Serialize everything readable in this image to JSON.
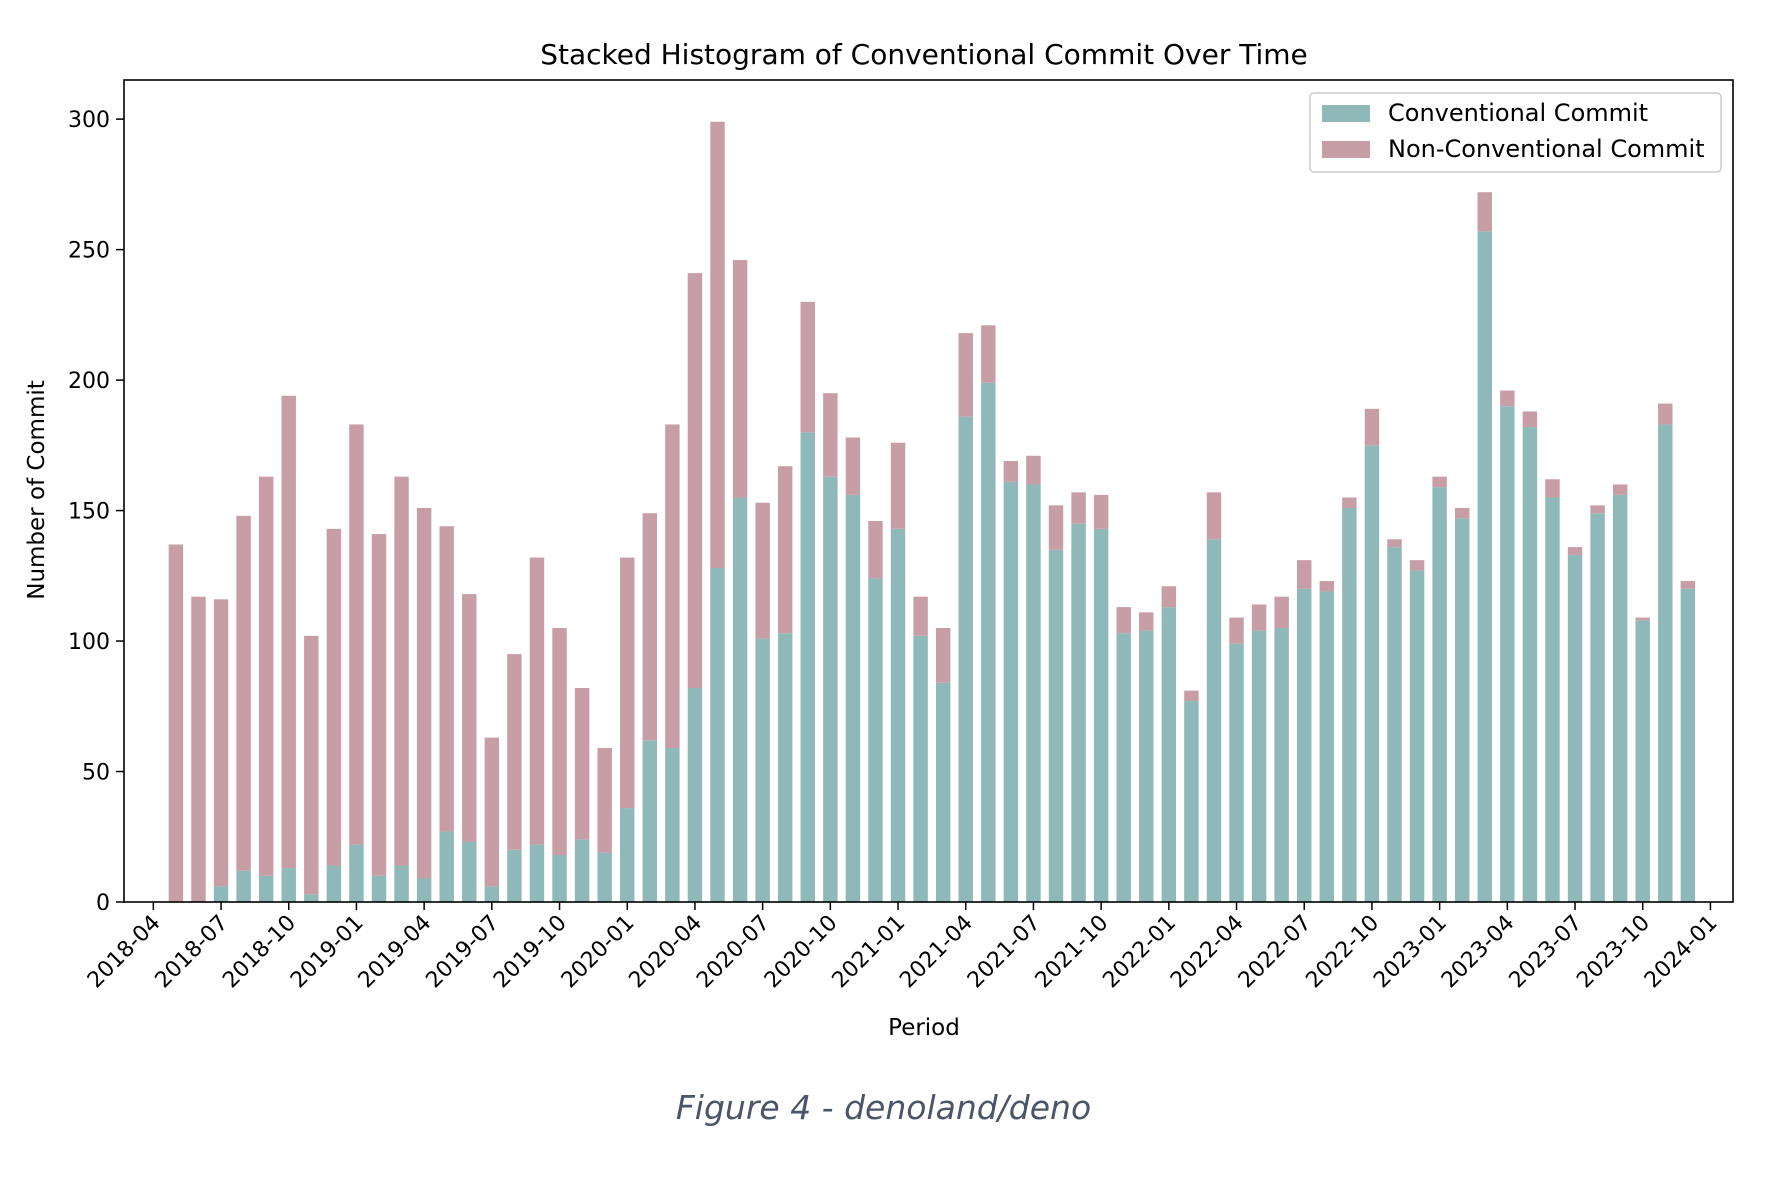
{
  "chart_data": {
    "type": "bar",
    "stacked": true,
    "title": "Stacked Histogram of Conventional Commit Over Time",
    "xlabel": "Period",
    "ylabel": "Number of Commit",
    "ylim": [
      0,
      315
    ],
    "yticks": [
      0,
      50,
      100,
      150,
      200,
      250,
      300
    ],
    "xticks": [
      "2018-04",
      "2018-07",
      "2018-10",
      "2019-01",
      "2019-04",
      "2019-07",
      "2019-10",
      "2020-01",
      "2020-04",
      "2020-07",
      "2020-10",
      "2021-01",
      "2021-04",
      "2021-07",
      "2021-10",
      "2022-01",
      "2022-04",
      "2022-07",
      "2022-10",
      "2023-01",
      "2023-04",
      "2023-07",
      "2023-10",
      "2024-01"
    ],
    "legend_position": "top-right",
    "grid": false,
    "x": [
      "2018-05",
      "2018-06",
      "2018-07",
      "2018-08",
      "2018-09",
      "2018-10",
      "2018-11",
      "2018-12",
      "2019-01",
      "2019-02",
      "2019-03",
      "2019-04",
      "2019-05",
      "2019-06",
      "2019-07",
      "2019-08",
      "2019-09",
      "2019-10",
      "2019-11",
      "2019-12",
      "2020-01",
      "2020-02",
      "2020-03",
      "2020-04",
      "2020-05",
      "2020-06",
      "2020-07",
      "2020-08",
      "2020-09",
      "2020-10",
      "2020-11",
      "2020-12",
      "2021-01",
      "2021-02",
      "2021-03",
      "2021-04",
      "2021-05",
      "2021-06",
      "2021-07",
      "2021-08",
      "2021-09",
      "2021-10",
      "2021-11",
      "2021-12",
      "2022-01",
      "2022-02",
      "2022-03",
      "2022-04",
      "2022-05",
      "2022-06",
      "2022-07",
      "2022-08",
      "2022-09",
      "2022-10",
      "2022-11",
      "2022-12",
      "2023-01",
      "2023-02",
      "2023-03",
      "2023-04",
      "2023-05",
      "2023-06",
      "2023-07",
      "2023-08",
      "2023-09",
      "2023-10",
      "2023-11",
      "2023-12"
    ],
    "series": [
      {
        "name": "Conventional Commit",
        "color": "#8fb8b8",
        "values": [
          0,
          0,
          6,
          12,
          10,
          13,
          3,
          14,
          22,
          10,
          14,
          9,
          27,
          23,
          6,
          20,
          22,
          18,
          24,
          19,
          36,
          62,
          59,
          82,
          128,
          155,
          101,
          103,
          180,
          163,
          156,
          124,
          143,
          102,
          84,
          186,
          199,
          161,
          160,
          135,
          145,
          143,
          103,
          104,
          113,
          77,
          139,
          99,
          104,
          105,
          120,
          119,
          151,
          175,
          136,
          127,
          159,
          147,
          257,
          190,
          182,
          155,
          133,
          149,
          156,
          108,
          183,
          120
        ]
      },
      {
        "name": "Non-Conventional Commit",
        "color": "#c89ea6",
        "values": [
          137,
          117,
          110,
          136,
          153,
          181,
          99,
          129,
          161,
          131,
          149,
          142,
          117,
          95,
          57,
          75,
          110,
          87,
          58,
          40,
          96,
          87,
          124,
          159,
          171,
          91,
          52,
          64,
          50,
          32,
          22,
          22,
          33,
          15,
          21,
          32,
          22,
          8,
          11,
          17,
          12,
          13,
          10,
          7,
          8,
          4,
          18,
          10,
          10,
          12,
          11,
          4,
          4,
          14,
          3,
          4,
          4,
          4,
          15,
          6,
          6,
          7,
          3,
          3,
          4,
          1,
          8,
          3
        ]
      }
    ]
  },
  "caption": "Figure 4 - denoland/deno"
}
